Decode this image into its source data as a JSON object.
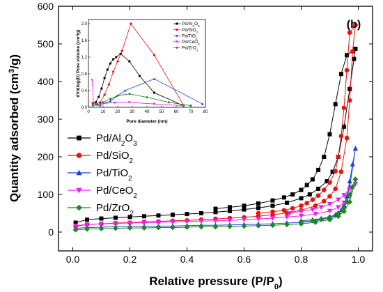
{
  "chart_data": [
    {
      "type": "scatter",
      "panel_label": "(b)",
      "xlabel": "Relative pressure (P/P",
      "xlabel_sub": "0",
      "xlabel_end": ")",
      "ylabel": "Quantity adsorbed (cm",
      "ylabel_sup": "3",
      "ylabel_end": "/g)",
      "xlim": [
        -0.05,
        1.05
      ],
      "ylim": [
        -50,
        600
      ],
      "xticks": [
        "0.0",
        "0.2",
        "0.4",
        "0.6",
        "0.8",
        "1.0"
      ],
      "xtick_values": [
        0.0,
        0.2,
        0.4,
        0.6,
        0.8,
        1.0
      ],
      "yticks": [
        "0",
        "100",
        "200",
        "300",
        "400",
        "500",
        "600"
      ],
      "ytick_values": [
        0,
        100,
        200,
        300,
        400,
        500,
        600
      ],
      "legend_position": "left-middle",
      "series": [
        {
          "name": "Pd/Al2O3",
          "name_base": "Pd/Al",
          "name_sub1": "2",
          "name_mid": "O",
          "name_sub2": "3",
          "color": "#000000",
          "marker": "square",
          "adsorption": [
            [
              0.01,
              25
            ],
            [
              0.05,
              33
            ],
            [
              0.1,
              36
            ],
            [
              0.15,
              38
            ],
            [
              0.2,
              40
            ],
            [
              0.25,
              42
            ],
            [
              0.3,
              44
            ],
            [
              0.35,
              46
            ],
            [
              0.4,
              48
            ],
            [
              0.45,
              50
            ],
            [
              0.5,
              53
            ],
            [
              0.55,
              56
            ],
            [
              0.6,
              60
            ],
            [
              0.65,
              64
            ],
            [
              0.7,
              70
            ],
            [
              0.75,
              78
            ],
            [
              0.8,
              90
            ],
            [
              0.83,
              100
            ],
            [
              0.86,
              115
            ],
            [
              0.89,
              135
            ],
            [
              0.91,
              160
            ],
            [
              0.93,
              200
            ],
            [
              0.95,
              280
            ],
            [
              0.97,
              380
            ],
            [
              0.985,
              460
            ],
            [
              0.99,
              487
            ]
          ],
          "desorption": [
            [
              0.99,
              487
            ],
            [
              0.96,
              470
            ],
            [
              0.94,
              420
            ],
            [
              0.92,
              340
            ],
            [
              0.9,
              260
            ],
            [
              0.88,
              200
            ],
            [
              0.86,
              165
            ],
            [
              0.84,
              140
            ],
            [
              0.82,
              125
            ],
            [
              0.8,
              112
            ],
            [
              0.77,
              100
            ],
            [
              0.74,
              92
            ],
            [
              0.7,
              84
            ],
            [
              0.65,
              76
            ],
            [
              0.6,
              70
            ],
            [
              0.55,
              66
            ],
            [
              0.5,
              62
            ]
          ]
        },
        {
          "name": "Pd/SiO2",
          "name_base": "Pd/SiO",
          "name_sub1": "2",
          "name_mid": "",
          "name_sub2": "",
          "color": "#e8130f",
          "marker": "circle",
          "adsorption": [
            [
              0.01,
              15
            ],
            [
              0.05,
              20
            ],
            [
              0.1,
              22
            ],
            [
              0.15,
              24
            ],
            [
              0.2,
              25
            ],
            [
              0.25,
              27
            ],
            [
              0.3,
              28
            ],
            [
              0.35,
              30
            ],
            [
              0.4,
              31
            ],
            [
              0.45,
              33
            ],
            [
              0.5,
              35
            ],
            [
              0.55,
              37
            ],
            [
              0.6,
              39
            ],
            [
              0.65,
              42
            ],
            [
              0.7,
              46
            ],
            [
              0.75,
              51
            ],
            [
              0.8,
              58
            ],
            [
              0.85,
              70
            ],
            [
              0.88,
              82
            ],
            [
              0.9,
              95
            ],
            [
              0.92,
              115
            ],
            [
              0.94,
              160
            ],
            [
              0.96,
              250
            ],
            [
              0.97,
              350
            ],
            [
              0.98,
              480
            ],
            [
              0.99,
              550
            ]
          ],
          "desorption": [
            [
              0.99,
              550
            ],
            [
              0.97,
              530
            ],
            [
              0.96,
              430
            ],
            [
              0.95,
              330
            ],
            [
              0.94,
              255
            ],
            [
              0.93,
              200
            ],
            [
              0.92,
              162
            ],
            [
              0.9,
              132
            ],
            [
              0.88,
              112
            ],
            [
              0.86,
              97
            ],
            [
              0.84,
              86
            ],
            [
              0.82,
              77
            ],
            [
              0.8,
              70
            ],
            [
              0.77,
              63
            ],
            [
              0.74,
              58
            ],
            [
              0.7,
              54
            ],
            [
              0.65,
              50
            ]
          ]
        },
        {
          "name": "Pd/TiO2",
          "name_base": "Pd/TiO",
          "name_sub1": "2",
          "name_mid": "",
          "name_sub2": "",
          "color": "#1c3fe0",
          "marker": "triangle-up",
          "adsorption": [
            [
              0.01,
              10
            ],
            [
              0.05,
              12
            ],
            [
              0.1,
              13
            ],
            [
              0.15,
              14
            ],
            [
              0.2,
              15
            ],
            [
              0.25,
              15
            ],
            [
              0.3,
              16
            ],
            [
              0.35,
              16
            ],
            [
              0.4,
              17
            ],
            [
              0.45,
              18
            ],
            [
              0.5,
              18
            ],
            [
              0.55,
              19
            ],
            [
              0.6,
              20
            ],
            [
              0.65,
              21
            ],
            [
              0.7,
              22
            ],
            [
              0.75,
              24
            ],
            [
              0.8,
              26
            ],
            [
              0.85,
              30
            ],
            [
              0.9,
              37
            ],
            [
              0.93,
              48
            ],
            [
              0.95,
              68
            ],
            [
              0.97,
              120
            ],
            [
              0.99,
              222
            ]
          ],
          "desorption": [
            [
              0.99,
              222
            ],
            [
              0.98,
              180
            ],
            [
              0.97,
              135
            ],
            [
              0.96,
              95
            ],
            [
              0.95,
              72
            ],
            [
              0.94,
              58
            ],
            [
              0.92,
              46
            ],
            [
              0.9,
              40
            ],
            [
              0.87,
              36
            ],
            [
              0.84,
              33
            ],
            [
              0.8,
              30
            ]
          ]
        },
        {
          "name": "Pd/CeO2",
          "name_base": "Pd/CeO",
          "name_sub1": "2",
          "name_mid": "",
          "name_sub2": "",
          "color": "#f21cf2",
          "marker": "triangle-down",
          "adsorption": [
            [
              0.01,
              17
            ],
            [
              0.05,
              20
            ],
            [
              0.1,
              22
            ],
            [
              0.15,
              23
            ],
            [
              0.2,
              24
            ],
            [
              0.25,
              25
            ],
            [
              0.3,
              26
            ],
            [
              0.35,
              27
            ],
            [
              0.4,
              28
            ],
            [
              0.45,
              29
            ],
            [
              0.5,
              30
            ],
            [
              0.55,
              31
            ],
            [
              0.6,
              33
            ],
            [
              0.65,
              35
            ],
            [
              0.7,
              37
            ],
            [
              0.75,
              40
            ],
            [
              0.8,
              43
            ],
            [
              0.85,
              48
            ],
            [
              0.9,
              56
            ],
            [
              0.93,
              66
            ],
            [
              0.95,
              78
            ],
            [
              0.97,
              95
            ],
            [
              0.99,
              128
            ]
          ],
          "desorption": [
            [
              0.99,
              128
            ],
            [
              0.97,
              115
            ],
            [
              0.95,
              98
            ],
            [
              0.93,
              86
            ],
            [
              0.9,
              74
            ],
            [
              0.87,
              66
            ],
            [
              0.84,
              60
            ],
            [
              0.8,
              55
            ],
            [
              0.76,
              50
            ]
          ]
        },
        {
          "name": "Pd/ZrO2",
          "name_base": "Pd/ZrO",
          "name_sub1": "2",
          "name_mid": "",
          "name_sub2": "",
          "color": "#1a8a1a",
          "marker": "diamond",
          "adsorption": [
            [
              0.01,
              6
            ],
            [
              0.05,
              8
            ],
            [
              0.1,
              9
            ],
            [
              0.15,
              10
            ],
            [
              0.2,
              11
            ],
            [
              0.25,
              11
            ],
            [
              0.3,
              12
            ],
            [
              0.35,
              12
            ],
            [
              0.4,
              13
            ],
            [
              0.45,
              14
            ],
            [
              0.5,
              14
            ],
            [
              0.55,
              15
            ],
            [
              0.6,
              16
            ],
            [
              0.65,
              17
            ],
            [
              0.7,
              18
            ],
            [
              0.75,
              20
            ],
            [
              0.8,
              22
            ],
            [
              0.85,
              26
            ],
            [
              0.9,
              33
            ],
            [
              0.93,
              42
            ],
            [
              0.95,
              55
            ],
            [
              0.97,
              80
            ],
            [
              0.99,
              140
            ]
          ],
          "desorption": [
            [
              0.99,
              140
            ],
            [
              0.98,
              120
            ],
            [
              0.97,
              100
            ],
            [
              0.96,
              80
            ],
            [
              0.95,
              65
            ],
            [
              0.93,
              50
            ],
            [
              0.9,
              40
            ],
            [
              0.87,
              34
            ],
            [
              0.84,
              30
            ],
            [
              0.8,
              27
            ]
          ]
        }
      ]
    },
    {
      "type": "line",
      "inset": true,
      "xlabel": "Pore diameter (nm)",
      "ylabel": "dV/dlog(D) Pore volume (cm³/g)",
      "xlim": [
        0,
        80
      ],
      "ylim": [
        0,
        2.1
      ],
      "xticks": [
        "0",
        "10",
        "20",
        "30",
        "40",
        "50",
        "60",
        "70",
        "80"
      ],
      "xtick_values": [
        0,
        10,
        20,
        30,
        40,
        50,
        60,
        70,
        80
      ],
      "yticks": [
        "0.0",
        "0.4",
        "0.8",
        "1.2",
        "1.6",
        "2.0"
      ],
      "ytick_values": [
        0.0,
        0.4,
        0.8,
        1.2,
        1.6,
        2.0
      ],
      "legend_position": "top-right",
      "series": [
        {
          "name": "Pd/Al2O3",
          "name_base": "Pd/Al",
          "name_sub1": "2",
          "name_mid": "O",
          "name_sub2": "3",
          "color": "#000000",
          "marker": "square",
          "points": [
            [
              3,
              0.1
            ],
            [
              5,
              0.12
            ],
            [
              7,
              0.25
            ],
            [
              9,
              0.45
            ],
            [
              11,
              0.7
            ],
            [
              13,
              0.9
            ],
            [
              15,
              1.05
            ],
            [
              17,
              1.15
            ],
            [
              19,
              1.2
            ],
            [
              22,
              1.28
            ],
            [
              28,
              1.1
            ],
            [
              35,
              0.75
            ],
            [
              45,
              0.35
            ],
            [
              65,
              0.04
            ]
          ]
        },
        {
          "name": "Pd/SiO2",
          "name_base": "Pd/SiO",
          "name_sub1": "2",
          "name_mid": "",
          "name_sub2": "",
          "color": "#e8130f",
          "marker": "circle",
          "points": [
            [
              3,
              0.1
            ],
            [
              5,
              0.08
            ],
            [
              8,
              0.12
            ],
            [
              11,
              0.3
            ],
            [
              14,
              0.55
            ],
            [
              17,
              0.85
            ],
            [
              20,
              1.1
            ],
            [
              23,
              1.35
            ],
            [
              29,
              2.0
            ],
            [
              45,
              1.25
            ],
            [
              65,
              0.05
            ]
          ]
        },
        {
          "name": "Pd/TiO2",
          "name_base": "Pd/TiO",
          "name_sub1": "2",
          "name_mid": "",
          "name_sub2": "",
          "color": "#1c3fe0",
          "marker": "triangle-up",
          "points": [
            [
              3,
              0.05
            ],
            [
              8,
              0.05
            ],
            [
              15,
              0.15
            ],
            [
              25,
              0.4
            ],
            [
              45,
              0.68
            ],
            [
              78,
              0.08
            ]
          ]
        },
        {
          "name": "Pd/CeO2",
          "name_base": "Pd/CeO",
          "name_sub1": "2",
          "name_mid": "",
          "name_sub2": "",
          "color": "#f21cf2",
          "marker": "triangle-down",
          "points": [
            [
              2.5,
              0.65
            ],
            [
              3.5,
              0.1
            ],
            [
              5,
              0.08
            ],
            [
              8,
              0.08
            ],
            [
              12,
              0.1
            ],
            [
              18,
              0.11
            ],
            [
              28,
              0.12
            ],
            [
              45,
              0.08
            ],
            [
              65,
              0.04
            ]
          ]
        },
        {
          "name": "Pd/ZrO2",
          "name_base": "Pd/ZrO",
          "name_sub1": "2",
          "name_mid": "",
          "name_sub2": "",
          "color": "#1a8a1a",
          "marker": "diamond",
          "points": [
            [
              3,
              0.05
            ],
            [
              6,
              0.06
            ],
            [
              10,
              0.12
            ],
            [
              15,
              0.2
            ],
            [
              20,
              0.28
            ],
            [
              28,
              0.32
            ],
            [
              40,
              0.24
            ],
            [
              55,
              0.12
            ],
            [
              70,
              0.04
            ]
          ]
        }
      ]
    }
  ]
}
